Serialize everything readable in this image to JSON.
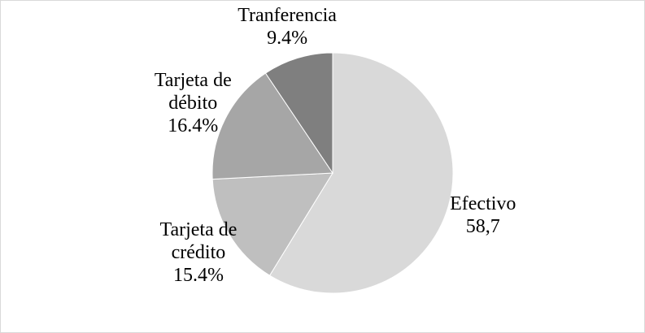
{
  "chart_data": {
    "type": "pie",
    "categories": [
      "Efectivo",
      "Tarjeta de crédito",
      "Tarjeta de débito",
      "Tranferencia"
    ],
    "values": [
      58.7,
      15.4,
      16.4,
      9.4
    ],
    "value_labels": [
      "58,7",
      "15.4%",
      "16.4%",
      "9.4%"
    ],
    "colors": [
      "#d9d9d9",
      "#bfbfbf",
      "#a6a6a6",
      "#7f7f7f"
    ]
  }
}
